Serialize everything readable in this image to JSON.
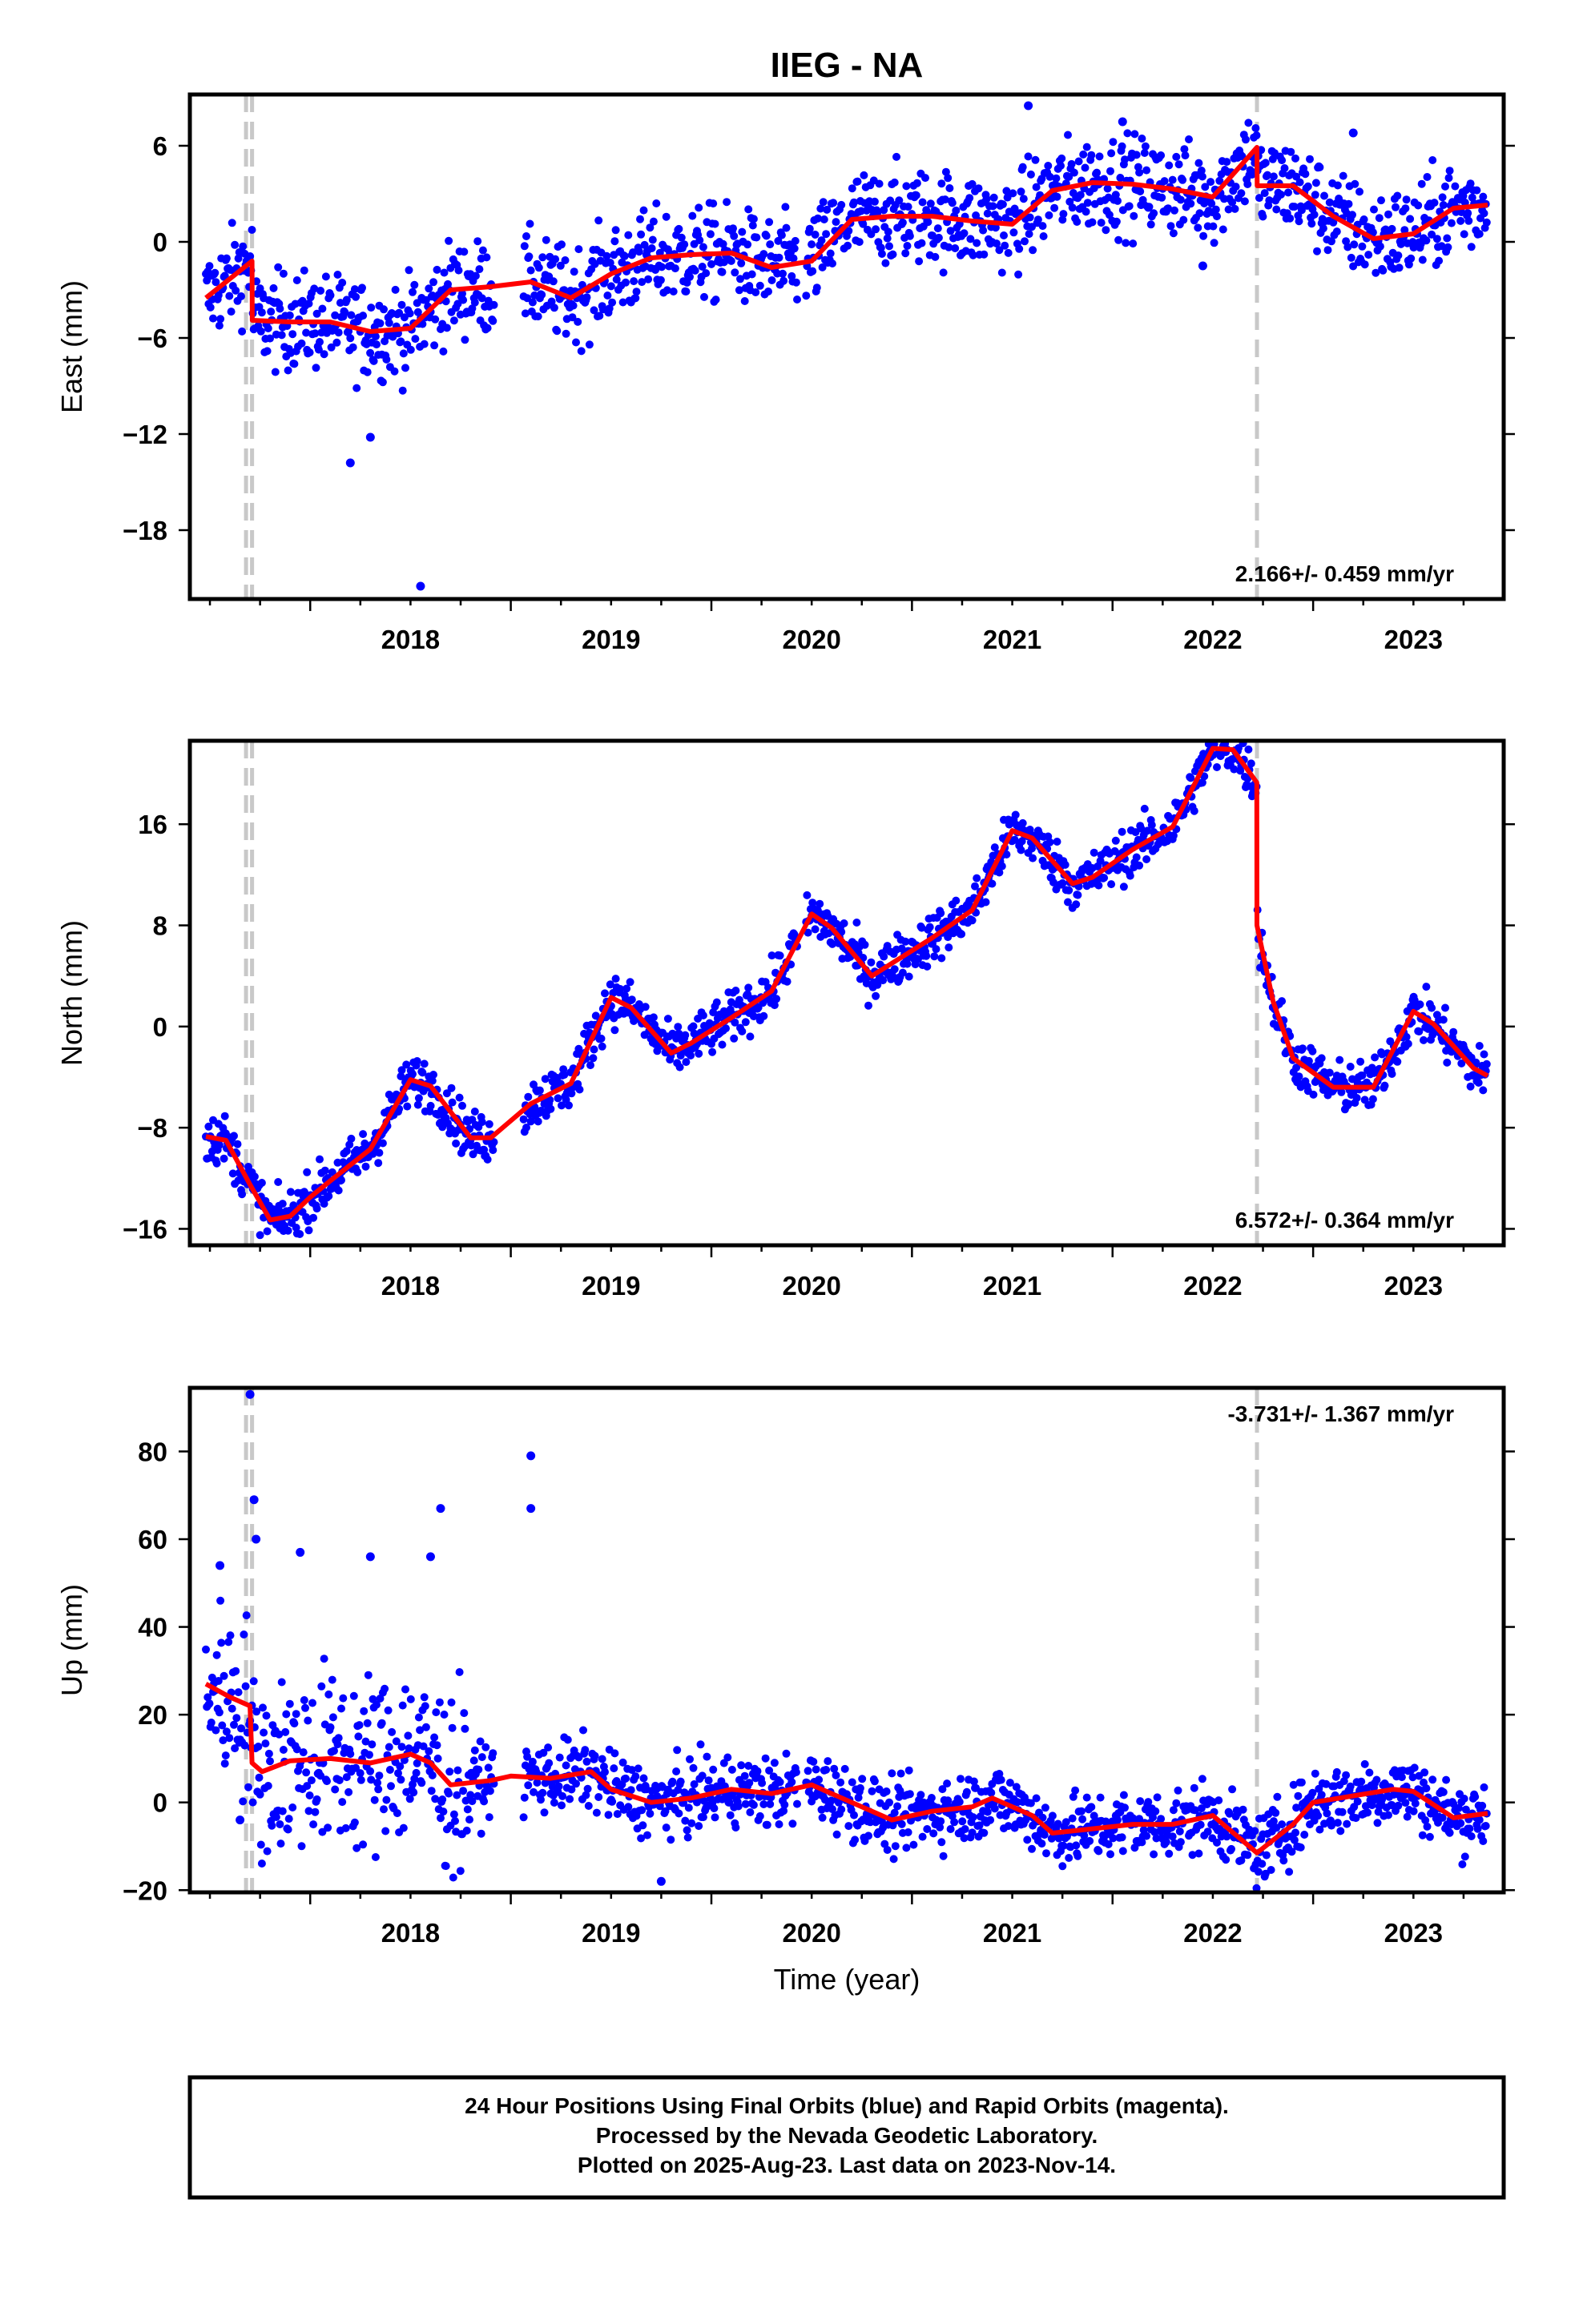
{
  "chart_data": {
    "type": "scatter",
    "title": "IIEG - NA",
    "xlabel": "Time (year)",
    "xlim": [
      2017.4,
      2023.95
    ],
    "x_ticks": [
      2018,
      2019,
      2020,
      2021,
      2022,
      2023
    ],
    "x_tick_labels": [
      "2018",
      "2019",
      "2020",
      "2021",
      "2022",
      "2023"
    ],
    "colors": {
      "data": "#0000ff",
      "model": "#ff0000",
      "offset_line": "#c8c8c8"
    },
    "offset_lines": [
      2017.68,
      2017.71,
      2022.72
    ],
    "last_data": 2023.87,
    "panels": [
      {
        "name": "east",
        "ylabel": "East (mm)",
        "ylim": [
          -22.3,
          9.2
        ],
        "y_ticks": [
          6,
          0,
          -6,
          -12,
          -18
        ],
        "y_tick_labels": [
          "6",
          "0",
          "−6",
          "−12",
          "−18"
        ],
        "rate_label": "2.166+/- 0.459 mm/yr",
        "rate_position": "bottom-right",
        "series": [
          {
            "style": "line",
            "x": [
              2017.48,
              2017.58,
              2017.71,
              2017.711,
              2017.9,
              2018.1,
              2018.3,
              2018.5,
              2018.7,
              2018.9,
              2019.1,
              2019.3,
              2019.5,
              2019.7,
              2019.9,
              2020.1,
              2020.3,
              2020.5,
              2020.7,
              2020.9,
              2021.1,
              2021.3,
              2021.5,
              2021.7,
              2021.9,
              2022.1,
              2022.3,
              2022.5,
              2022.72,
              2022.721,
              2022.9,
              2023.1,
              2023.3,
              2023.5,
              2023.7,
              2023.87
            ],
            "y": [
              -3.5,
              -2.5,
              -1.2,
              -4.9,
              -5.0,
              -5.0,
              -5.6,
              -5.4,
              -3.0,
              -2.8,
              -2.5,
              -3.5,
              -2.0,
              -1.0,
              -0.8,
              -0.7,
              -1.6,
              -1.2,
              1.4,
              1.6,
              1.6,
              1.3,
              1.1,
              3.2,
              3.7,
              3.6,
              3.3,
              2.8,
              5.9,
              3.5,
              3.5,
              1.6,
              0.2,
              0.5,
              2.1,
              2.3
            ]
          },
          {
            "style": "points",
            "noise": 1.5,
            "outliers": [
              [
                2018.55,
                -21.5
              ],
              [
                2018.2,
                -13.8
              ],
              [
                2018.3,
                -12.2
              ],
              [
                2021.58,
                8.5
              ],
              [
                2022.05,
                7.5
              ],
              [
                2022.45,
                -1.5
              ],
              [
                2023.2,
                6.8
              ]
            ]
          }
        ]
      },
      {
        "name": "north",
        "ylabel": "North (mm)",
        "ylim": [
          -17.3,
          22.6
        ],
        "y_ticks": [
          16,
          8,
          0,
          -8,
          -16
        ],
        "y_tick_labels": [
          "16",
          "8",
          "0",
          "−8",
          "−16"
        ],
        "rate_label": "6.572+/- 0.364 mm/yr",
        "rate_position": "bottom-right",
        "series": [
          {
            "style": "line",
            "x": [
              2017.48,
              2017.58,
              2017.7,
              2017.8,
              2017.9,
              2018.0,
              2018.1,
              2018.3,
              2018.5,
              2018.6,
              2018.8,
              2018.9,
              2019.1,
              2019.3,
              2019.5,
              2019.6,
              2019.8,
              2019.9,
              2020.1,
              2020.3,
              2020.5,
              2020.6,
              2020.8,
              2020.9,
              2021.1,
              2021.3,
              2021.5,
              2021.6,
              2021.8,
              2021.9,
              2022.1,
              2022.3,
              2022.5,
              2022.6,
              2022.719,
              2022.72,
              2022.8,
              2022.9,
              2023.1,
              2023.3,
              2023.5,
              2023.6,
              2023.8,
              2023.87
            ],
            "y": [
              -8.7,
              -9.0,
              -12.5,
              -15.3,
              -15.0,
              -13.5,
              -12.2,
              -9.7,
              -4.2,
              -4.7,
              -8.8,
              -8.8,
              -6.1,
              -4.5,
              2.3,
              1.5,
              -2.1,
              -1.3,
              0.7,
              2.8,
              8.9,
              7.8,
              4.0,
              5.0,
              7.0,
              9.2,
              15.5,
              14.9,
              11.3,
              11.8,
              14.0,
              15.8,
              22.0,
              21.9,
              19.3,
              8.0,
              2.0,
              -2.5,
              -4.8,
              -4.8,
              1.2,
              0.2,
              -3.3,
              -3.9
            ]
          },
          {
            "style": "points",
            "noise": 1.0,
            "outliers": []
          }
        ]
      },
      {
        "name": "up",
        "ylabel": "Up (mm)",
        "ylim": [
          -20.5,
          94.5
        ],
        "y_ticks": [
          80,
          60,
          40,
          20,
          0,
          -20
        ],
        "y_tick_labels": [
          "80",
          "60",
          "40",
          "20",
          "0",
          "−20"
        ],
        "rate_label": "-3.731+/- 1.367 mm/yr",
        "rate_position": "top-right",
        "series": [
          {
            "style": "line",
            "x": [
              2017.48,
              2017.6,
              2017.7,
              2017.71,
              2017.76,
              2017.9,
              2018.1,
              2018.3,
              2018.5,
              2018.6,
              2018.7,
              2018.9,
              2019.0,
              2019.2,
              2019.4,
              2019.5,
              2019.7,
              2019.9,
              2020.1,
              2020.3,
              2020.5,
              2020.7,
              2020.9,
              2021.1,
              2021.3,
              2021.4,
              2021.6,
              2021.7,
              2021.9,
              2022.1,
              2022.3,
              2022.5,
              2022.72,
              2022.9,
              2023.0,
              2023.2,
              2023.4,
              2023.5,
              2023.7,
              2023.87
            ],
            "y": [
              27,
              24,
              22,
              9,
              7,
              9.5,
              10,
              9,
              11,
              9,
              4,
              5,
              6,
              5.5,
              7,
              3,
              0,
              1,
              3,
              2,
              4,
              0,
              -4,
              -2,
              -1,
              1,
              -3,
              -7,
              -6,
              -5,
              -5,
              -3,
              -11.5,
              -5,
              0,
              1.5,
              3,
              2.5,
              -3.5,
              -2.5
            ]
          },
          {
            "style": "points",
            "noise": 4.0,
            "outliers": [
              [
                2017.7,
                93
              ],
              [
                2017.72,
                69
              ],
              [
                2017.73,
                60
              ],
              [
                2017.65,
                -4
              ],
              [
                2018.65,
                67
              ],
              [
                2018.6,
                56
              ],
              [
                2019.1,
                79
              ],
              [
                2019.1,
                67
              ],
              [
                2017.55,
                54
              ],
              [
                2017.95,
                57
              ],
              [
                2018.3,
                56
              ],
              [
                2019.75,
                -18
              ]
            ]
          }
        ]
      }
    ]
  },
  "footer": {
    "line1": "24 Hour Positions Using Final Orbits (blue) and Rapid Orbits (magenta).",
    "line2": "Processed by the Nevada Geodetic Laboratory.",
    "line3": "Plotted on 2025-Aug-23. Last data on 2023-Nov-14."
  }
}
